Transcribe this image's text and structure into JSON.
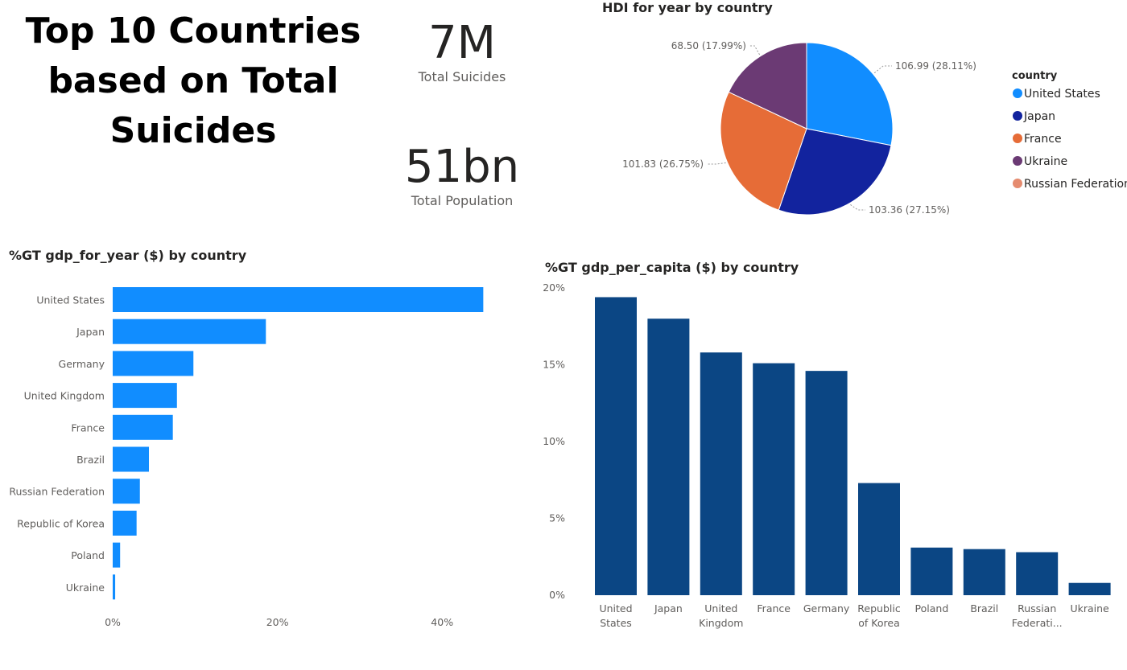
{
  "report": {
    "title": "Top 10 Countries based on Total Suicides"
  },
  "cards": {
    "total_suicides": {
      "value": "7M",
      "label": "Total Suicides"
    },
    "total_population": {
      "value": "51bn",
      "label": "Total Population"
    }
  },
  "colors": {
    "bar_light": "#118dff",
    "bar_dark": "#0b4684",
    "pie": [
      "#118dff",
      "#12239e",
      "#e66c37",
      "#6b3a74",
      "#e58b6f"
    ],
    "text": "#252423",
    "axis_text": "#605e5c",
    "leader": "#9a9a9a"
  },
  "chart_data": [
    {
      "type": "pie",
      "title": "HDI for year by country",
      "legend_title": "country",
      "legend_position": "right",
      "legend": [
        "United States",
        "Japan",
        "France",
        "Ukraine",
        "Russian Federation"
      ],
      "slices": [
        {
          "name": "United States",
          "value": 106.99,
          "label": "106.99 (28.11%)"
        },
        {
          "name": "Japan",
          "value": 103.36,
          "label": "103.36 (27.15%)"
        },
        {
          "name": "France",
          "value": 101.83,
          "label": "101.83 (26.75%)"
        },
        {
          "name": "Ukraine",
          "value": 68.5,
          "label": "68.50 (17.99%)"
        }
      ]
    },
    {
      "type": "bar",
      "orientation": "horizontal",
      "title": "%GT gdp_for_year ($) by country",
      "categories": [
        "United States",
        "Japan",
        "Germany",
        "United Kingdom",
        "France",
        "Brazil",
        "Russian Federation",
        "Republic of Korea",
        "Poland",
        "Ukraine"
      ],
      "values": [
        45.0,
        18.6,
        9.8,
        7.8,
        7.3,
        4.4,
        3.3,
        2.9,
        0.9,
        0.3
      ],
      "xlim": [
        0,
        45
      ],
      "xticks": [
        0,
        20,
        40
      ],
      "xtick_labels": [
        "0%",
        "20%",
        "40%"
      ],
      "grid": false
    },
    {
      "type": "bar",
      "orientation": "vertical",
      "title": "%GT gdp_per_capita ($) by country",
      "categories": [
        "United States",
        "Japan",
        "United Kingdom",
        "France",
        "Germany",
        "Republic of Korea",
        "Poland",
        "Brazil",
        "Russian Federation",
        "Ukraine"
      ],
      "category_labels": [
        [
          "United",
          "States"
        ],
        [
          "Japan"
        ],
        [
          "United",
          "Kingdom"
        ],
        [
          "France"
        ],
        [
          "Germany"
        ],
        [
          "Republic",
          "of Korea"
        ],
        [
          "Poland"
        ],
        [
          "Brazil"
        ],
        [
          "Russian",
          "Federati..."
        ],
        [
          "Ukraine"
        ]
      ],
      "values": [
        19.4,
        18.0,
        15.8,
        15.1,
        14.6,
        7.3,
        3.1,
        3.0,
        2.8,
        0.8
      ],
      "ylim": [
        0,
        20
      ],
      "yticks": [
        0,
        5,
        10,
        15,
        20
      ],
      "ytick_labels": [
        "0%",
        "5%",
        "10%",
        "15%",
        "20%"
      ],
      "grid": false
    }
  ]
}
